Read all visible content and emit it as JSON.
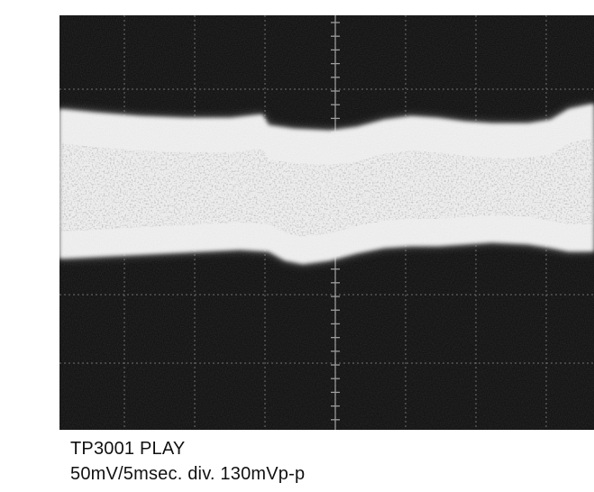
{
  "caption": {
    "title": "TP3001 PLAY",
    "settings": "50mV/5msec. div. 130mVp-p"
  },
  "colors": {
    "screen": "#0b0b0b",
    "trace": "#f2f2f2",
    "graticule": "#6a6a6a",
    "paper": "#ffffff",
    "text": "#111111"
  }
}
